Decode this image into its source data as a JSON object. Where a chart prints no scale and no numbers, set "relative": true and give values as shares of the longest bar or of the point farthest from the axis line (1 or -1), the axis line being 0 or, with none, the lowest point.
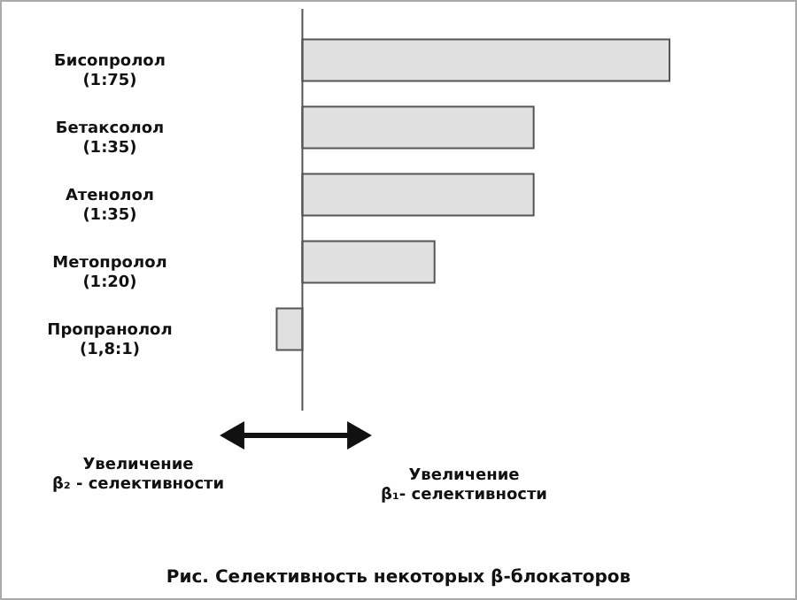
{
  "chart_data": {
    "type": "bar",
    "orientation": "horizontal",
    "relative": true,
    "title": "Рис. Селективность некоторых β-блокаторов",
    "categories": [
      "Бисопролол\n(1:75)",
      "Бетаксолол\n(1:35)",
      "Атенолол\n(1:35)",
      "Метопролол\n(1:20)",
      "Пропранолол\n(1,8:1)"
    ],
    "values": [
      1,
      0.63,
      0.63,
      0.36,
      -0.07
    ],
    "color": "#e0e0e0",
    "annotations": [
      "Увеличение\nβ₂ - селективности",
      "Увеличение\nβ₁- селективности"
    ],
    "ref_lines": [
      {
        "axis": "x",
        "value": 0,
        "color": "#555555",
        "line_style": "solid"
      }
    ]
  }
}
